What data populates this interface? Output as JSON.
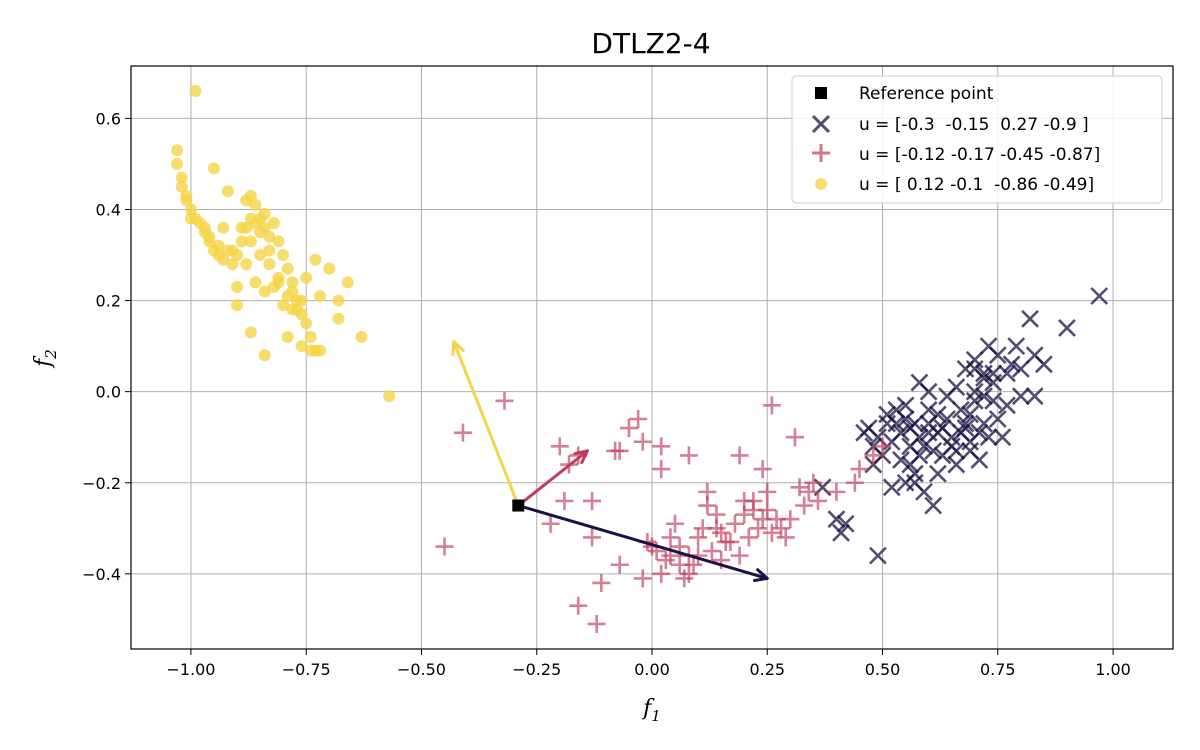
{
  "chart_data": {
    "type": "scatter",
    "title": "DTLZ2-4",
    "xlabel": {
      "main": "f",
      "sub": "1"
    },
    "ylabel": {
      "main": "f",
      "sub": "2"
    },
    "xlim": [
      -1.13,
      1.13
    ],
    "ylim": [
      -0.565,
      0.715
    ],
    "xticks": [
      -1.0,
      -0.75,
      -0.5,
      -0.25,
      0.0,
      0.25,
      0.5,
      0.75,
      1.0
    ],
    "xtick_labels": [
      "−1.00",
      "−0.75",
      "−0.50",
      "−0.25",
      "0.00",
      "0.25",
      "0.50",
      "0.75",
      "1.00"
    ],
    "yticks": [
      -0.4,
      -0.2,
      0.0,
      0.2,
      0.4,
      0.6
    ],
    "ytick_labels": [
      "−0.4",
      "−0.2",
      "0.0",
      "0.2",
      "0.4",
      "0.6"
    ],
    "grid": true,
    "legend_position": "top-right",
    "reference_point": {
      "label": "Reference point",
      "x": -0.29,
      "y": -0.25,
      "color": "#000000"
    },
    "series": [
      {
        "name": "u = [-0.3  -0.15  0.27 -0.9 ]",
        "marker": "x",
        "color": "#1a1244",
        "arrow_to": [
          0.25,
          -0.41
        ],
        "points": [
          [
            0.97,
            0.21
          ],
          [
            0.9,
            0.14
          ],
          [
            0.85,
            0.06
          ],
          [
            0.83,
            0.08
          ],
          [
            0.8,
            0.05
          ],
          [
            0.82,
            0.16
          ],
          [
            0.79,
            0.1
          ],
          [
            0.77,
            0.04
          ],
          [
            0.75,
            0.08
          ],
          [
            0.74,
            0.02
          ],
          [
            0.72,
            0.04
          ],
          [
            0.7,
            0.07
          ],
          [
            0.68,
            0.05
          ],
          [
            0.66,
            0.01
          ],
          [
            0.64,
            -0.01
          ],
          [
            0.62,
            -0.05
          ],
          [
            0.6,
            -0.07
          ],
          [
            0.58,
            -0.1
          ],
          [
            0.56,
            -0.12
          ],
          [
            0.55,
            -0.06
          ],
          [
            0.53,
            -0.04
          ],
          [
            0.51,
            -0.05
          ],
          [
            0.49,
            -0.1
          ],
          [
            0.47,
            -0.08
          ],
          [
            0.46,
            -0.09
          ],
          [
            0.48,
            -0.12
          ],
          [
            0.5,
            -0.14
          ],
          [
            0.52,
            -0.11
          ],
          [
            0.54,
            -0.15
          ],
          [
            0.57,
            -0.18
          ],
          [
            0.59,
            -0.22
          ],
          [
            0.61,
            -0.25
          ],
          [
            0.63,
            -0.14
          ],
          [
            0.65,
            -0.12
          ],
          [
            0.67,
            -0.09
          ],
          [
            0.69,
            -0.11
          ],
          [
            0.71,
            -0.15
          ],
          [
            0.73,
            -0.1
          ],
          [
            0.75,
            -0.06
          ],
          [
            0.77,
            -0.03
          ],
          [
            0.8,
            -0.01
          ],
          [
            0.83,
            -0.01
          ],
          [
            0.58,
            0.02
          ],
          [
            0.6,
            0.0
          ],
          [
            0.62,
            -0.09
          ],
          [
            0.56,
            -0.08
          ],
          [
            0.57,
            -0.2
          ],
          [
            0.55,
            -0.2
          ],
          [
            0.48,
            -0.16
          ],
          [
            0.49,
            -0.36
          ],
          [
            0.41,
            -0.31
          ],
          [
            0.42,
            -0.29
          ],
          [
            0.4,
            -0.28
          ],
          [
            0.37,
            -0.21
          ],
          [
            0.52,
            -0.21
          ],
          [
            0.53,
            -0.07
          ],
          [
            0.66,
            -0.16
          ],
          [
            0.68,
            -0.07
          ],
          [
            0.7,
            0.0
          ],
          [
            0.72,
            0.03
          ],
          [
            0.74,
            -0.02
          ],
          [
            0.69,
            -0.05
          ],
          [
            0.71,
            -0.09
          ],
          [
            0.6,
            -0.04
          ],
          [
            0.64,
            -0.06
          ],
          [
            0.58,
            -0.14
          ],
          [
            0.56,
            -0.16
          ],
          [
            0.59,
            -0.12
          ],
          [
            0.63,
            -0.08
          ],
          [
            0.67,
            -0.04
          ],
          [
            0.72,
            -0.07
          ],
          [
            0.76,
            -0.1
          ],
          [
            0.7,
            0.05
          ],
          [
            0.73,
            0.1
          ],
          [
            0.69,
            -0.13
          ],
          [
            0.65,
            -0.1
          ],
          [
            0.61,
            -0.13
          ],
          [
            0.57,
            -0.07
          ],
          [
            0.54,
            -0.09
          ],
          [
            0.51,
            -0.07
          ],
          [
            0.55,
            -0.03
          ],
          [
            0.6,
            -0.09
          ],
          [
            0.62,
            -0.18
          ],
          [
            0.68,
            -0.08
          ],
          [
            0.72,
            -0.01
          ],
          [
            0.78,
            0.06
          ],
          [
            0.74,
            0.04
          ],
          [
            0.7,
            -0.02
          ],
          [
            0.66,
            -0.13
          ]
        ]
      },
      {
        "name": "u = [-0.12 -0.17 -0.45 -0.87]",
        "marker": "+",
        "color": "#c23b5b",
        "arrow_to": [
          -0.14,
          -0.13
        ],
        "points": [
          [
            -0.45,
            -0.34
          ],
          [
            -0.41,
            -0.09
          ],
          [
            -0.32,
            -0.02
          ],
          [
            -0.22,
            -0.29
          ],
          [
            -0.2,
            -0.12
          ],
          [
            -0.18,
            -0.16
          ],
          [
            -0.16,
            -0.14
          ],
          [
            -0.19,
            -0.24
          ],
          [
            -0.13,
            -0.24
          ],
          [
            -0.13,
            -0.32
          ],
          [
            -0.16,
            -0.47
          ],
          [
            -0.12,
            -0.51
          ],
          [
            -0.11,
            -0.42
          ],
          [
            -0.07,
            -0.38
          ],
          [
            -0.08,
            -0.13
          ],
          [
            -0.05,
            -0.08
          ],
          [
            -0.03,
            -0.06
          ],
          [
            -0.02,
            -0.11
          ],
          [
            0.02,
            -0.12
          ],
          [
            0.02,
            -0.17
          ],
          [
            0.08,
            -0.14
          ],
          [
            0.12,
            -0.25
          ],
          [
            0.14,
            -0.3
          ],
          [
            0.1,
            -0.36
          ],
          [
            0.06,
            -0.38
          ],
          [
            0.04,
            -0.32
          ],
          [
            0.01,
            -0.35
          ],
          [
            -0.02,
            -0.41
          ],
          [
            0.02,
            -0.4
          ],
          [
            0.08,
            -0.4
          ],
          [
            0.06,
            -0.34
          ],
          [
            0.1,
            -0.32
          ],
          [
            0.13,
            -0.35
          ],
          [
            0.15,
            -0.37
          ],
          [
            0.17,
            -0.33
          ],
          [
            0.18,
            -0.29
          ],
          [
            0.19,
            -0.14
          ],
          [
            0.2,
            -0.27
          ],
          [
            0.22,
            -0.24
          ],
          [
            0.24,
            -0.28
          ],
          [
            0.25,
            -0.22
          ],
          [
            0.26,
            -0.31
          ],
          [
            0.28,
            -0.3
          ],
          [
            0.24,
            -0.17
          ],
          [
            0.26,
            -0.03
          ],
          [
            0.31,
            -0.1
          ],
          [
            0.32,
            -0.21
          ],
          [
            0.35,
            -0.2
          ],
          [
            0.33,
            -0.25
          ],
          [
            0.3,
            -0.28
          ],
          [
            0.36,
            -0.24
          ],
          [
            0.4,
            -0.22
          ],
          [
            0.44,
            -0.2
          ],
          [
            0.45,
            -0.17
          ],
          [
            0.48,
            -0.14
          ],
          [
            0.5,
            -0.12
          ],
          [
            -0.07,
            -0.13
          ],
          [
            -0.01,
            -0.33
          ],
          [
            0.03,
            -0.37
          ],
          [
            0.05,
            -0.29
          ],
          [
            0.08,
            -0.36
          ],
          [
            0.11,
            -0.3
          ],
          [
            0.14,
            -0.27
          ],
          [
            0.16,
            -0.33
          ],
          [
            0.21,
            -0.32
          ],
          [
            0.23,
            -0.3
          ],
          [
            0.25,
            -0.26
          ],
          [
            0.12,
            -0.22
          ],
          [
            0.09,
            -0.38
          ],
          [
            0.07,
            -0.41
          ],
          [
            0.19,
            -0.36
          ],
          [
            0.22,
            -0.26
          ],
          [
            0.27,
            -0.28
          ],
          [
            0.34,
            -0.22
          ],
          [
            0.0,
            -0.34
          ],
          [
            0.04,
            -0.36
          ],
          [
            0.15,
            -0.31
          ],
          [
            0.2,
            -0.24
          ],
          [
            0.29,
            -0.32
          ]
        ]
      },
      {
        "name": "u = [ 0.12 -0.1  -0.86 -0.49]",
        "marker": "o",
        "color": "#f5d547",
        "arrow_to": [
          -0.43,
          0.11
        ],
        "points": [
          [
            -0.99,
            0.66
          ],
          [
            -1.03,
            0.53
          ],
          [
            -1.03,
            0.5
          ],
          [
            -1.02,
            0.47
          ],
          [
            -1.02,
            0.45
          ],
          [
            -1.01,
            0.43
          ],
          [
            -1.01,
            0.42
          ],
          [
            -1.0,
            0.4
          ],
          [
            -0.99,
            0.38
          ],
          [
            -0.98,
            0.37
          ],
          [
            -0.97,
            0.35
          ],
          [
            -0.96,
            0.33
          ],
          [
            -0.95,
            0.31
          ],
          [
            -0.94,
            0.3
          ],
          [
            -0.93,
            0.29
          ],
          [
            -0.95,
            0.49
          ],
          [
            -0.92,
            0.31
          ],
          [
            -0.91,
            0.28
          ],
          [
            -0.9,
            0.3
          ],
          [
            -0.89,
            0.33
          ],
          [
            -0.88,
            0.36
          ],
          [
            -0.87,
            0.38
          ],
          [
            -0.86,
            0.37
          ],
          [
            -0.85,
            0.38
          ],
          [
            -0.84,
            0.36
          ],
          [
            -0.83,
            0.34
          ],
          [
            -0.82,
            0.37
          ],
          [
            -0.81,
            0.33
          ],
          [
            -0.8,
            0.3
          ],
          [
            -0.79,
            0.27
          ],
          [
            -0.78,
            0.24
          ],
          [
            -0.77,
            0.2
          ],
          [
            -0.76,
            0.17
          ],
          [
            -0.75,
            0.15
          ],
          [
            -0.74,
            0.12
          ],
          [
            -0.73,
            0.09
          ],
          [
            -0.72,
            0.21
          ],
          [
            -0.7,
            0.27
          ],
          [
            -0.68,
            0.2
          ],
          [
            -0.68,
            0.16
          ],
          [
            -0.66,
            0.24
          ],
          [
            -0.63,
            0.12
          ],
          [
            -0.57,
            -0.01
          ],
          [
            -0.92,
            0.44
          ],
          [
            -0.87,
            0.43
          ],
          [
            -0.88,
            0.28
          ],
          [
            -0.86,
            0.24
          ],
          [
            -0.84,
            0.22
          ],
          [
            -0.82,
            0.23
          ],
          [
            -0.8,
            0.19
          ],
          [
            -0.79,
            0.21
          ],
          [
            -0.77,
            0.18
          ],
          [
            -0.75,
            0.25
          ],
          [
            -0.73,
            0.29
          ],
          [
            -0.85,
            0.3
          ],
          [
            -0.83,
            0.28
          ],
          [
            -0.81,
            0.25
          ],
          [
            -0.78,
            0.18
          ],
          [
            -0.76,
            0.1
          ],
          [
            -0.74,
            0.09
          ],
          [
            -0.72,
            0.09
          ],
          [
            -0.84,
            0.08
          ],
          [
            -0.87,
            0.13
          ],
          [
            -0.9,
            0.19
          ],
          [
            -0.9,
            0.23
          ],
          [
            -0.93,
            0.36
          ],
          [
            -0.97,
            0.36
          ],
          [
            -1.0,
            0.38
          ],
          [
            -0.96,
            0.34
          ],
          [
            -0.94,
            0.32
          ],
          [
            -0.91,
            0.31
          ],
          [
            -0.89,
            0.36
          ],
          [
            -0.87,
            0.33
          ],
          [
            -0.85,
            0.35
          ],
          [
            -0.83,
            0.31
          ],
          [
            -0.81,
            0.24
          ],
          [
            -0.78,
            0.22
          ],
          [
            -0.76,
            0.2
          ],
          [
            -0.79,
            0.12
          ],
          [
            -0.88,
            0.42
          ],
          [
            -0.86,
            0.41
          ],
          [
            -0.84,
            0.39
          ]
        ]
      }
    ]
  }
}
